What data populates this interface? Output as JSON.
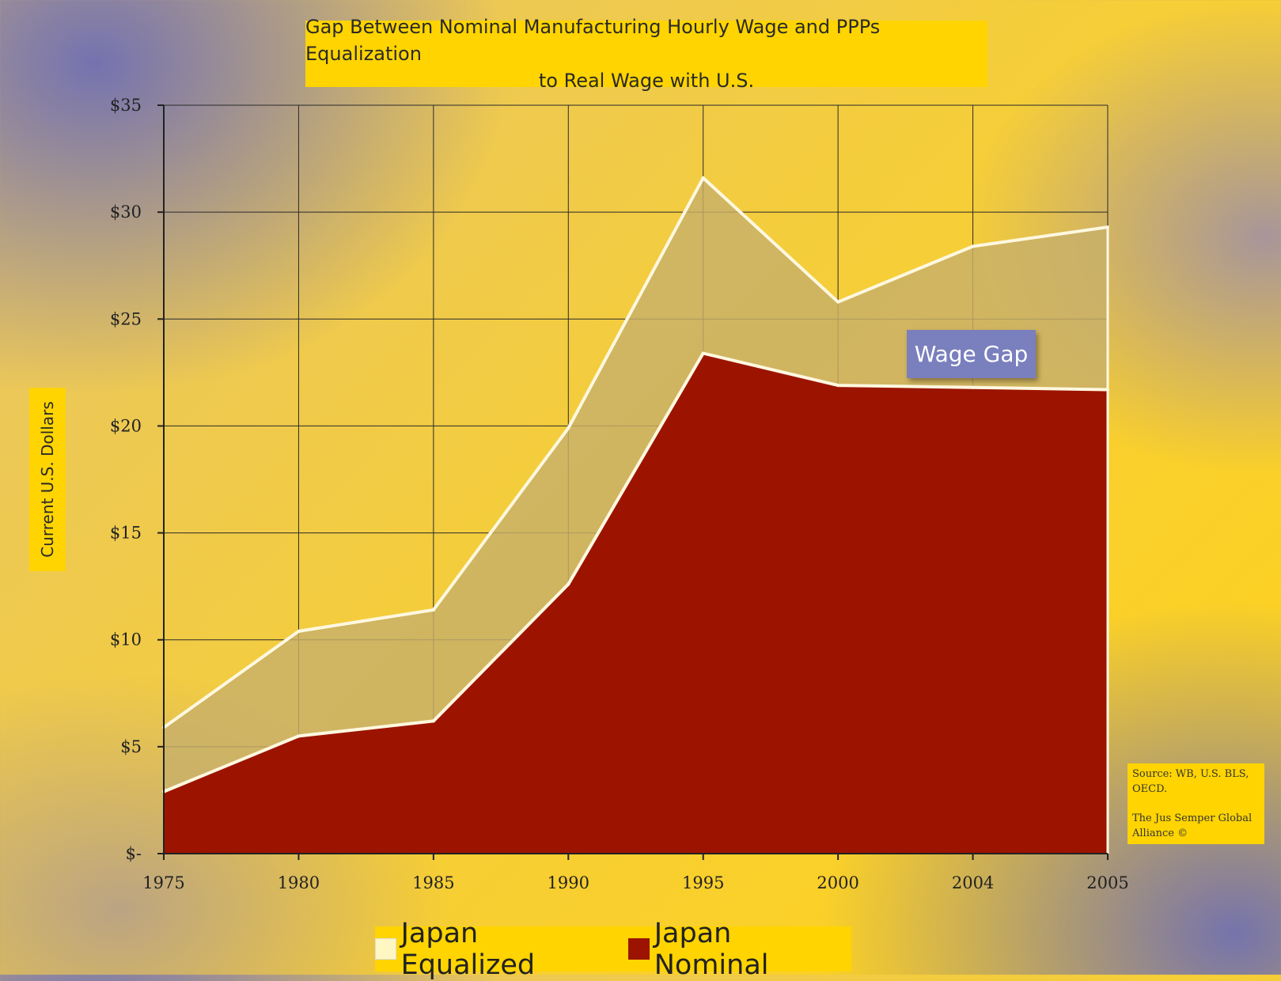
{
  "chart_data": {
    "type": "area",
    "title_line1": "Gap Between Nominal Manufacturing Hourly Wage and PPPs Equalization",
    "title_line2": "to Real Wage with U.S.",
    "ylabel": "Current U.S. Dollars",
    "categories": [
      "1975",
      "1980",
      "1985",
      "1990",
      "1995",
      "2000",
      "2004",
      "2005"
    ],
    "ylim": [
      0,
      35
    ],
    "y_ticks": [
      0,
      5,
      10,
      15,
      20,
      25,
      30,
      35
    ],
    "y_tick_labels": [
      "$-",
      "$5",
      "$10",
      "$15",
      "$20",
      "$25",
      "$30",
      "$35"
    ],
    "series": [
      {
        "name": "Japan Equalized",
        "values": [
          5.9,
          10.4,
          11.4,
          19.9,
          31.6,
          25.8,
          28.4,
          29.3
        ],
        "color": "#c8b06a"
      },
      {
        "name": "Japan Nominal",
        "values": [
          2.9,
          5.5,
          6.2,
          12.6,
          23.4,
          21.9,
          21.8,
          21.7
        ],
        "color": "#9c1400"
      }
    ],
    "annotation": "Wage Gap",
    "grid": true,
    "legend_position": "bottom"
  },
  "source": {
    "line1": "Source: WB, U.S. BLS, OECD.",
    "line2": "The Jus Semper Global Alliance ©"
  },
  "legend": {
    "equalized": "Japan Equalized",
    "nominal": "Japan Nominal"
  }
}
